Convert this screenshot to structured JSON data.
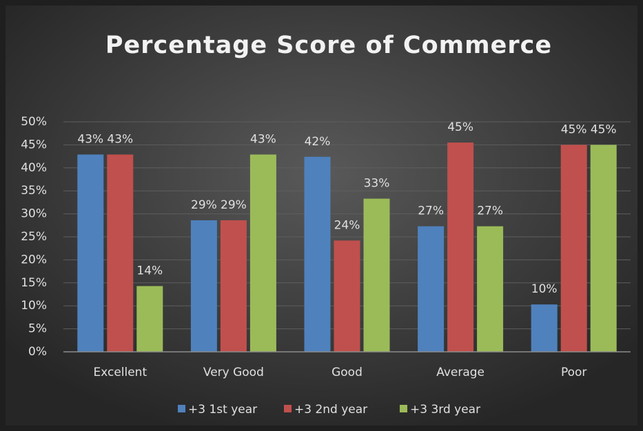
{
  "chart_data": {
    "type": "bar",
    "title": "Percentage Score of Commerce",
    "categories": [
      "Excellent",
      "Very Good",
      "Good",
      "Average",
      "Poor"
    ],
    "series": [
      {
        "name": "+3 1st year",
        "color": "#4f81bd",
        "values": [
          42.9,
          28.6,
          42.4,
          27.3,
          10.3
        ],
        "value_labels": [
          "43%",
          "29%",
          "42%",
          "27%",
          "10%"
        ]
      },
      {
        "name": "+3 2nd year",
        "color": "#c0504d",
        "values": [
          42.9,
          28.6,
          24.2,
          45.5,
          45.0
        ],
        "value_labels": [
          "43%",
          "29%",
          "24%",
          "45%",
          "45%"
        ]
      },
      {
        "name": "+3 3rd year",
        "color": "#9bbb59",
        "values": [
          14.3,
          42.9,
          33.3,
          27.3,
          45.0
        ],
        "value_labels": [
          "14%",
          "43%",
          "33%",
          "27%",
          "45%"
        ]
      }
    ],
    "ylim": [
      0,
      50
    ],
    "yticks": [
      {
        "value": 0,
        "label": "0%"
      },
      {
        "value": 5,
        "label": "5%"
      },
      {
        "value": 10,
        "label": "10%"
      },
      {
        "value": 15,
        "label": "15%"
      },
      {
        "value": 20,
        "label": "20%"
      },
      {
        "value": 25,
        "label": "25%"
      },
      {
        "value": 30,
        "label": "30%"
      },
      {
        "value": 35,
        "label": "35%"
      },
      {
        "value": 40,
        "label": "40%"
      },
      {
        "value": 45,
        "label": "45%"
      },
      {
        "value": 50,
        "label": "50%"
      }
    ],
    "grid": true,
    "legend": "bottom"
  }
}
